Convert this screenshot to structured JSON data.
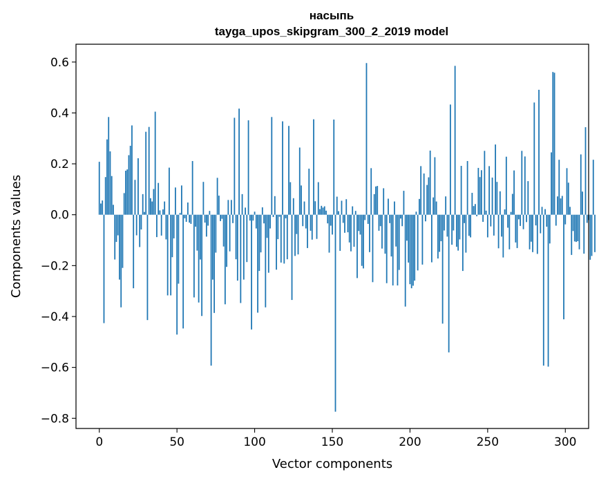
{
  "chart_data": {
    "type": "bar",
    "title": "насыпь",
    "subtitle": "tayga_upos_skipgram_300_2_2019 model",
    "xlabel": "Vector components",
    "ylabel": "Components values",
    "xlim": [
      -15,
      315
    ],
    "ylim": [
      -0.84,
      0.67
    ],
    "xticks": [
      0,
      50,
      100,
      150,
      200,
      250,
      300
    ],
    "xtick_labels": [
      "0",
      "50",
      "100",
      "150",
      "200",
      "250",
      "300"
    ],
    "yticks": [
      0.6,
      0.4,
      0.2,
      0.0,
      -0.2,
      -0.4,
      -0.6,
      -0.8
    ],
    "ytick_labels": [
      "0.6",
      "0.4",
      "0.2",
      "0.0",
      "−0.2",
      "−0.4",
      "−0.6",
      "−0.8"
    ],
    "grid": false,
    "legend": "none",
    "bar_color": "#1f77b4",
    "values": [
      0.208,
      0.044,
      0.056,
      -0.426,
      0.148,
      0.296,
      0.384,
      0.249,
      0.152,
      0.039,
      -0.176,
      -0.107,
      -0.081,
      -0.255,
      -0.364,
      -0.209,
      0.085,
      0.173,
      0.178,
      0.234,
      0.271,
      0.351,
      -0.289,
      0.137,
      -0.081,
      0.222,
      -0.127,
      -0.058,
      0.081,
      0.011,
      0.326,
      -0.414,
      0.345,
      0.065,
      0.052,
      0.101,
      0.405,
      -0.088,
      0.125,
      0.017,
      -0.082,
      0.021,
      0.052,
      -0.097,
      -0.317,
      0.185,
      -0.317,
      -0.167,
      -0.093,
      0.107,
      -0.471,
      -0.271,
      0.007,
      0.115,
      -0.447,
      -0.014,
      -0.028,
      0.048,
      -0.031,
      -0.036,
      0.211,
      -0.325,
      -0.047,
      -0.141,
      -0.345,
      -0.176,
      -0.398,
      0.129,
      -0.031,
      -0.086,
      -0.043,
      0.015,
      -0.593,
      -0.255,
      -0.386,
      -0.149,
      0.145,
      0.075,
      -0.025,
      -0.016,
      -0.125,
      -0.352,
      -0.205,
      0.058,
      -0.144,
      0.058,
      -0.033,
      0.381,
      -0.175,
      -0.259,
      0.417,
      -0.347,
      0.081,
      -0.255,
      0.028,
      -0.186,
      0.371,
      -0.023,
      -0.451,
      -0.023,
      0.012,
      -0.054,
      -0.385,
      -0.221,
      -0.148,
      0.029,
      -0.034,
      -0.364,
      -0.091,
      -0.228,
      -0.054,
      0.384,
      -0.009,
      0.073,
      -0.216,
      -0.096,
      -0.008,
      -0.188,
      0.367,
      -0.192,
      -0.014,
      -0.175,
      0.349,
      0.128,
      -0.335,
      0.065,
      -0.162,
      -0.076,
      -0.156,
      0.264,
      0.115,
      -0.045,
      0.052,
      -0.054,
      -0.131,
      0.181,
      -0.063,
      -0.098,
      0.375,
      0.053,
      -0.095,
      0.128,
      0.022,
      0.035,
      0.028,
      0.033,
      0.016,
      -0.034,
      -0.149,
      -0.043,
      -0.078,
      0.374,
      -0.774,
      0.071,
      0.014,
      -0.142,
      0.055,
      -0.032,
      -0.071,
      0.061,
      -0.069,
      -0.109,
      -0.144,
      0.033,
      -0.126,
      0.015,
      -0.249,
      -0.064,
      -0.078,
      -0.201,
      -0.211,
      -0.021,
      0.596,
      -0.036,
      -0.147,
      0.183,
      -0.265,
      0.081,
      0.111,
      0.113,
      -0.063,
      -0.045,
      -0.133,
      0.104,
      -0.153,
      -0.269,
      0.063,
      -0.033,
      -0.164,
      -0.278,
      0.052,
      -0.125,
      -0.278,
      -0.217,
      -0.015,
      -0.045,
      0.094,
      -0.361,
      -0.102,
      -0.188,
      -0.273,
      -0.289,
      -0.279,
      -0.259,
      0.012,
      -0.219,
      0.062,
      0.191,
      -0.196,
      0.162,
      -0.026,
      0.117,
      0.147,
      0.252,
      -0.187,
      0.068,
      0.226,
      0.052,
      -0.172,
      -0.146,
      -0.104,
      -0.428,
      -0.062,
      0.072,
      -0.086,
      -0.541,
      0.433,
      -0.118,
      -0.062,
      0.585,
      -0.126,
      -0.141,
      -0.097,
      0.192,
      -0.221,
      -0.033,
      -0.149,
      0.211,
      -0.083,
      -0.089,
      0.086,
      0.034,
      0.042,
      -0.006,
      0.184,
      0.148,
      0.175,
      -0.028,
      0.251,
      0.016,
      -0.089,
      0.191,
      -0.046,
      0.146,
      -0.082,
      0.276,
      0.129,
      -0.132,
      0.092,
      -0.086,
      -0.168,
      0.021,
      0.228,
      -0.051,
      -0.136,
      0.011,
      0.082,
      0.174,
      -0.109,
      -0.131,
      -0.018,
      -0.044,
      0.251,
      -0.057,
      0.229,
      -0.029,
      0.132,
      -0.136,
      -0.106,
      -0.147,
      0.441,
      -0.042,
      -0.154,
      0.491,
      -0.073,
      0.031,
      -0.593,
      0.022,
      -0.047,
      -0.597,
      -0.113,
      0.245,
      0.561,
      0.558,
      -0.043,
      0.072,
      0.216,
      0.064,
      0.074,
      -0.411,
      -0.038,
      0.183,
      0.126,
      0.031,
      -0.158,
      -0.064,
      -0.105,
      -0.107,
      -0.104,
      -0.136,
      0.237,
      0.091,
      -0.153,
      0.344,
      -0.032,
      -0.021,
      -0.177,
      -0.162,
      0.216,
      -0.147
    ]
  }
}
